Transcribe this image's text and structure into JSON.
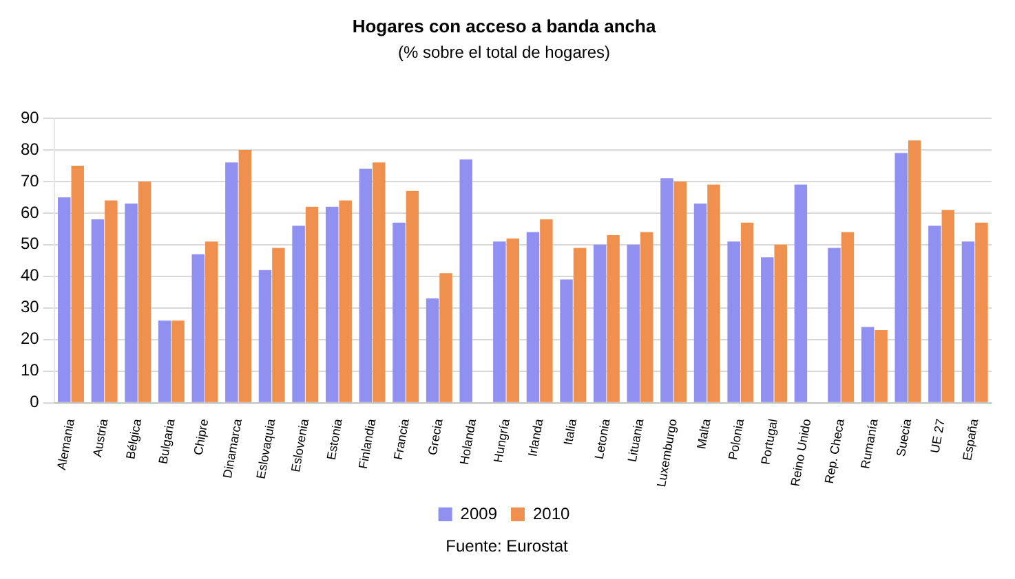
{
  "chart_data": {
    "type": "bar",
    "title": "Hogares con acceso a banda ancha",
    "subtitle": "(% sobre el total de hogares)",
    "categories": [
      "Alemania",
      "Austria",
      "Bélgica",
      "Bulgaria",
      "Chipre",
      "Dinamarca",
      "Eslovaquia",
      "Eslovenia",
      "Estonia",
      "Finlandia",
      "Francia",
      "Grecia",
      "Holanda",
      "Hungría",
      "Irlanda",
      "Italia",
      "Letonia",
      "Lituania",
      "Luxemburgo",
      "Malta",
      "Polonia",
      "Portugal",
      "Reino Unido",
      "Rep. Checa",
      "Rumanía",
      "Suecia",
      "UE 27",
      "España"
    ],
    "series": [
      {
        "name": "2009",
        "color": "#9090f0",
        "values": [
          65,
          58,
          63,
          26,
          47,
          76,
          42,
          56,
          62,
          74,
          57,
          33,
          77,
          51,
          54,
          39,
          50,
          50,
          71,
          63,
          51,
          46,
          69,
          49,
          24,
          79,
          56,
          51
        ]
      },
      {
        "name": "2010",
        "color": "#f0904f",
        "values": [
          75,
          64,
          70,
          26,
          51,
          80,
          49,
          62,
          64,
          76,
          67,
          41,
          null,
          52,
          58,
          49,
          53,
          54,
          70,
          69,
          57,
          50,
          null,
          54,
          23,
          83,
          61,
          57
        ]
      }
    ],
    "ylim": [
      0,
      90
    ],
    "yticks": [
      0,
      10,
      20,
      30,
      40,
      50,
      60,
      70,
      80,
      90
    ],
    "grid": "y",
    "legend": "bottom",
    "annotations": [
      "Fuente: Eurostat"
    ]
  }
}
